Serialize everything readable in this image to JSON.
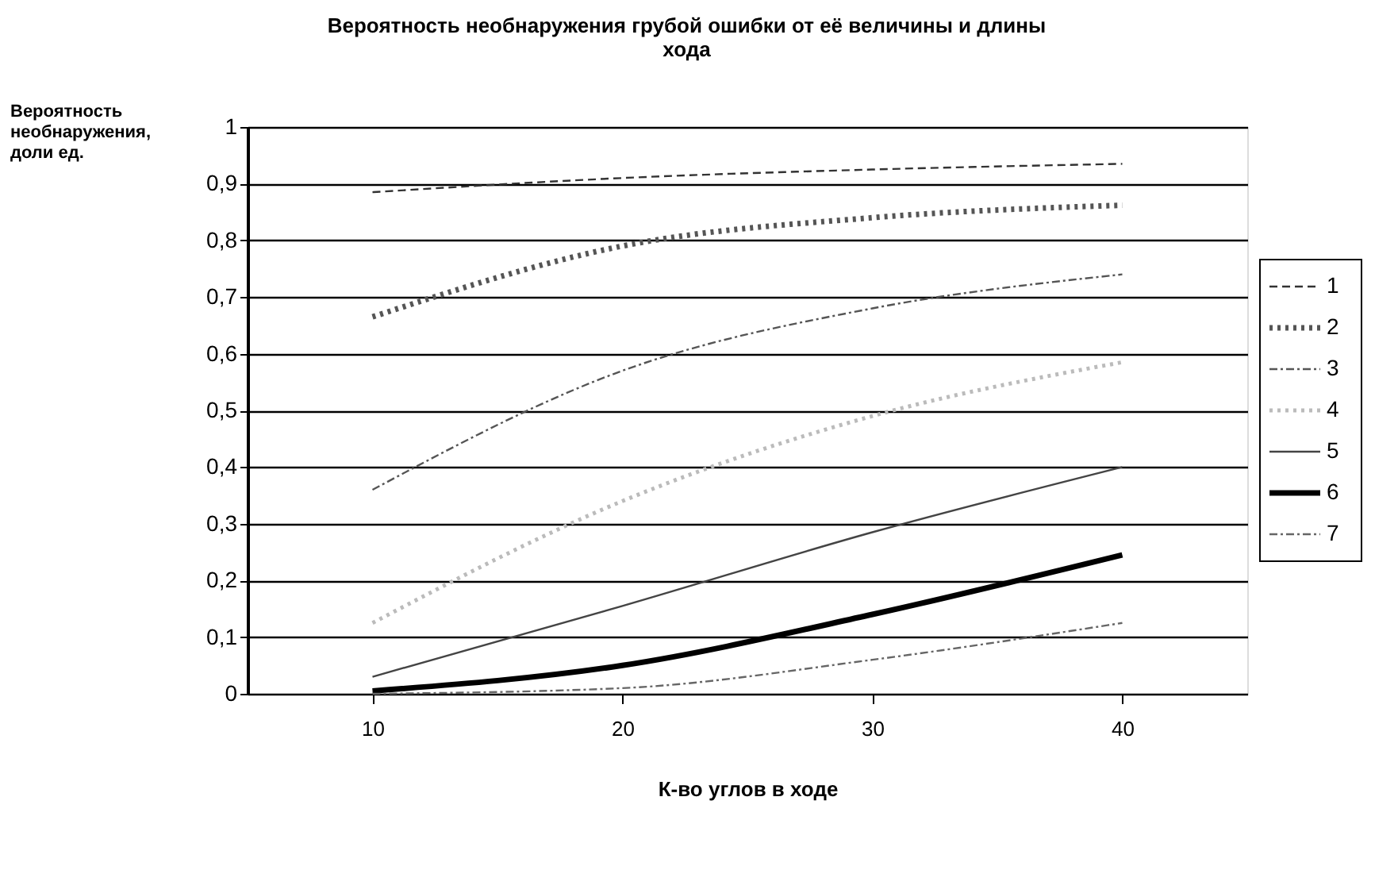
{
  "chart_data": {
    "type": "line",
    "title": "Вероятность необнаружения грубой ошибки от её величины и длины хода",
    "xlabel": "К-во углов в ходе",
    "ylabel": "Вероятность необнаружения, доли ед.",
    "categories": [
      "10",
      "20",
      "30",
      "40"
    ],
    "ylim": [
      0,
      1
    ],
    "yticks": [
      0,
      {
        "value": 0.1,
        "label": "0,1"
      },
      {
        "value": 0.2,
        "label": "0,2"
      },
      {
        "value": 0.3,
        "label": "0,3"
      },
      {
        "value": 0.4,
        "label": "0,4"
      },
      {
        "value": 0.5,
        "label": "0,5"
      },
      {
        "value": 0.6,
        "label": "0,6"
      },
      {
        "value": 0.7,
        "label": "0,7"
      },
      {
        "value": 0.8,
        "label": "0,8"
      },
      {
        "value": 0.9,
        "label": "0,9"
      },
      1
    ],
    "grid": "y",
    "legend": "right",
    "marker": "none",
    "series": [
      {
        "name": "1",
        "color": "#333333",
        "line_style": "dashed",
        "values": [
          0.885,
          0.91,
          0.925,
          0.935
        ]
      },
      {
        "name": "2",
        "color": "#555555",
        "line_style": "dotted",
        "values": [
          0.665,
          0.79,
          0.84,
          0.862
        ]
      },
      {
        "name": "3",
        "color": "#555555",
        "line_style": "dashdot",
        "values": [
          0.36,
          0.57,
          0.68,
          0.74
        ]
      },
      {
        "name": "4",
        "color": "#bbbbbb",
        "line_style": "dotted",
        "values": [
          0.125,
          0.34,
          0.49,
          0.585
        ]
      },
      {
        "name": "5",
        "color": "#444444",
        "line_style": "solid",
        "values": [
          0.03,
          0.155,
          0.285,
          0.4
        ]
      },
      {
        "name": "6",
        "color": "#000000",
        "line_style": "solid",
        "values": [
          0.005,
          0.05,
          0.14,
          0.245
        ]
      },
      {
        "name": "7",
        "color": "#666666",
        "line_style": "dashdot",
        "values": [
          0.0,
          0.01,
          0.06,
          0.125
        ]
      }
    ]
  }
}
